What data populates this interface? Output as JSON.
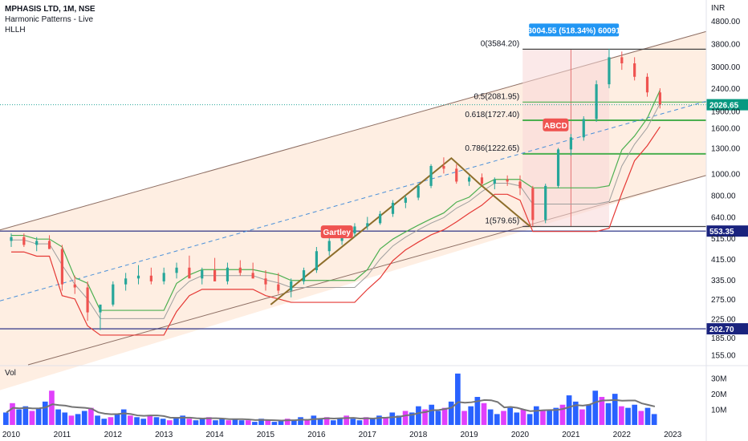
{
  "header": {
    "symbol_line": "MPHASIS LTD, 1M, NSE",
    "indicator_1": "Harmonic Patterns - Live",
    "indicator_2": "HLLH"
  },
  "volume_label": "Vol",
  "currency": "INR",
  "colors": {
    "up": "#26a69a",
    "down": "#ef5350",
    "channel": "#8d6e63",
    "channel_fill": "#fde8d8",
    "hline": "#1a237e",
    "fib": "#4caf50",
    "last_price": "#089981",
    "measure": "#2196f3",
    "vol_up": "#2962ff",
    "vol_down": "#e040fb",
    "harmonic": "#8d6e2b"
  },
  "chart_data": {
    "type": "candlestick",
    "x_axis": {
      "labels": [
        "2010",
        "2011",
        "2012",
        "2013",
        "2014",
        "2015",
        "2016",
        "2017",
        "2018",
        "2019",
        "2020",
        "2021",
        "2022",
        "2023"
      ]
    },
    "y_axis": {
      "scale": "log",
      "labels": [
        "4800.00",
        "3800.00",
        "3000.00",
        "2400.00",
        "1900.00",
        "1600.00",
        "1300.00",
        "1000.00",
        "800.00",
        "640.00",
        "515.00",
        "415.00",
        "335.00",
        "275.00",
        "225.00",
        "185.00",
        "155.00"
      ]
    },
    "volume_axis": {
      "labels": [
        "30M",
        "20M",
        "10M"
      ]
    },
    "price_series": [
      [
        "2010-01",
        500,
        540,
        470,
        520
      ],
      [
        "2010-04",
        520,
        540,
        470,
        480
      ],
      [
        "2010-07",
        480,
        520,
        450,
        500
      ],
      [
        "2010-10",
        500,
        530,
        470,
        460
      ],
      [
        "2011-01",
        460,
        480,
        300,
        320
      ],
      [
        "2011-04",
        320,
        350,
        290,
        310
      ],
      [
        "2011-07",
        310,
        330,
        220,
        240
      ],
      [
        "2011-10",
        240,
        250,
        200,
        260
      ],
      [
        "2012-01",
        260,
        330,
        255,
        320
      ],
      [
        "2012-04",
        320,
        360,
        300,
        340
      ],
      [
        "2012-07",
        340,
        390,
        320,
        350
      ],
      [
        "2012-10",
        350,
        380,
        320,
        330
      ],
      [
        "2013-01",
        330,
        380,
        320,
        360
      ],
      [
        "2013-04",
        360,
        400,
        340,
        380
      ],
      [
        "2013-07",
        380,
        430,
        360,
        340
      ],
      [
        "2013-10",
        340,
        380,
        320,
        370
      ],
      [
        "2014-01",
        370,
        420,
        350,
        330
      ],
      [
        "2014-04",
        330,
        400,
        320,
        380
      ],
      [
        "2014-07",
        380,
        410,
        350,
        360
      ],
      [
        "2014-10",
        360,
        400,
        340,
        340
      ],
      [
        "2015-01",
        340,
        370,
        300,
        320
      ],
      [
        "2015-04",
        320,
        360,
        290,
        300
      ],
      [
        "2015-07",
        300,
        340,
        280,
        330
      ],
      [
        "2015-10",
        330,
        380,
        320,
        370
      ],
      [
        "2016-01",
        370,
        470,
        360,
        450
      ],
      [
        "2016-04",
        450,
        520,
        430,
        500
      ],
      [
        "2016-07",
        500,
        560,
        480,
        540
      ],
      [
        "2016-10",
        540,
        600,
        520,
        580
      ],
      [
        "2017-01",
        580,
        640,
        560,
        600
      ],
      [
        "2017-04",
        600,
        680,
        590,
        660
      ],
      [
        "2017-07",
        660,
        760,
        640,
        740
      ],
      [
        "2017-10",
        740,
        800,
        700,
        780
      ],
      [
        "2018-01",
        780,
        900,
        760,
        880
      ],
      [
        "2018-04",
        880,
        1100,
        860,
        1080
      ],
      [
        "2018-07",
        1080,
        1180,
        1000,
        1050
      ],
      [
        "2018-10",
        1050,
        1100,
        900,
        920
      ],
      [
        "2019-01",
        920,
        980,
        880,
        960
      ],
      [
        "2019-04",
        960,
        1000,
        880,
        900
      ],
      [
        "2019-07",
        900,
        960,
        850,
        940
      ],
      [
        "2019-10",
        940,
        980,
        880,
        920
      ],
      [
        "2020-01",
        920,
        980,
        800,
        860
      ],
      [
        "2020-04",
        860,
        880,
        580,
        620
      ],
      [
        "2020-07",
        620,
        900,
        600,
        880
      ],
      [
        "2020-10",
        880,
        1300,
        860,
        1280
      ],
      [
        "2021-01",
        1280,
        1500,
        1200,
        1450
      ],
      [
        "2021-04",
        1450,
        1800,
        1400,
        1750
      ],
      [
        "2021-07",
        1750,
        2600,
        1700,
        2500
      ],
      [
        "2021-10",
        2500,
        3600,
        2400,
        3300
      ],
      [
        "2022-01",
        3300,
        3500,
        2900,
        3100
      ],
      [
        "2022-04",
        3100,
        3300,
        2600,
        2700
      ],
      [
        "2022-07",
        2700,
        2800,
        2200,
        2300
      ],
      [
        "2022-10",
        2300,
        2400,
        1950,
        2026.65
      ]
    ],
    "volume_series_millions": [
      8,
      14,
      10,
      12,
      9,
      11,
      15,
      22,
      10,
      8,
      6,
      7,
      9,
      11,
      6,
      4,
      5,
      7,
      10,
      6,
      5,
      4,
      6,
      5,
      4,
      3,
      5,
      6,
      4,
      3,
      4,
      5,
      3,
      4,
      3,
      4,
      3,
      3,
      2,
      4,
      3,
      2,
      3,
      4,
      3,
      5,
      3,
      6,
      4,
      5,
      3,
      4,
      6,
      4,
      3,
      5,
      4,
      6,
      5,
      8,
      6,
      9,
      8,
      12,
      10,
      13,
      9,
      11,
      15,
      33,
      9,
      12,
      18,
      14,
      10,
      7,
      9,
      11,
      8,
      10,
      7,
      12,
      9,
      10,
      11,
      13,
      19,
      15,
      10,
      13,
      22,
      18,
      14,
      20,
      12,
      11,
      13,
      9,
      11,
      7
    ],
    "levels": [
      {
        "price": 553.35,
        "label": "553.35"
      },
      {
        "price": 202.7,
        "label": "202.70"
      }
    ],
    "last_price": {
      "price": 2026.65,
      "label": "2026.65"
    },
    "fib_labels": [
      {
        "text": "0(3584.20)",
        "price": 3584.2
      },
      {
        "text": "0.5(2081.95)",
        "price": 2081.95
      },
      {
        "text": "0.618(1727.40)",
        "price": 1727.4
      },
      {
        "text": "0.786(1222.65)",
        "price": 1222.65
      },
      {
        "text": "1(579.65)",
        "price": 579.65
      }
    ],
    "measure_label": "3004.55 (518.34%) 60091",
    "pattern_tags": [
      "Gartley",
      "ABCD"
    ]
  }
}
